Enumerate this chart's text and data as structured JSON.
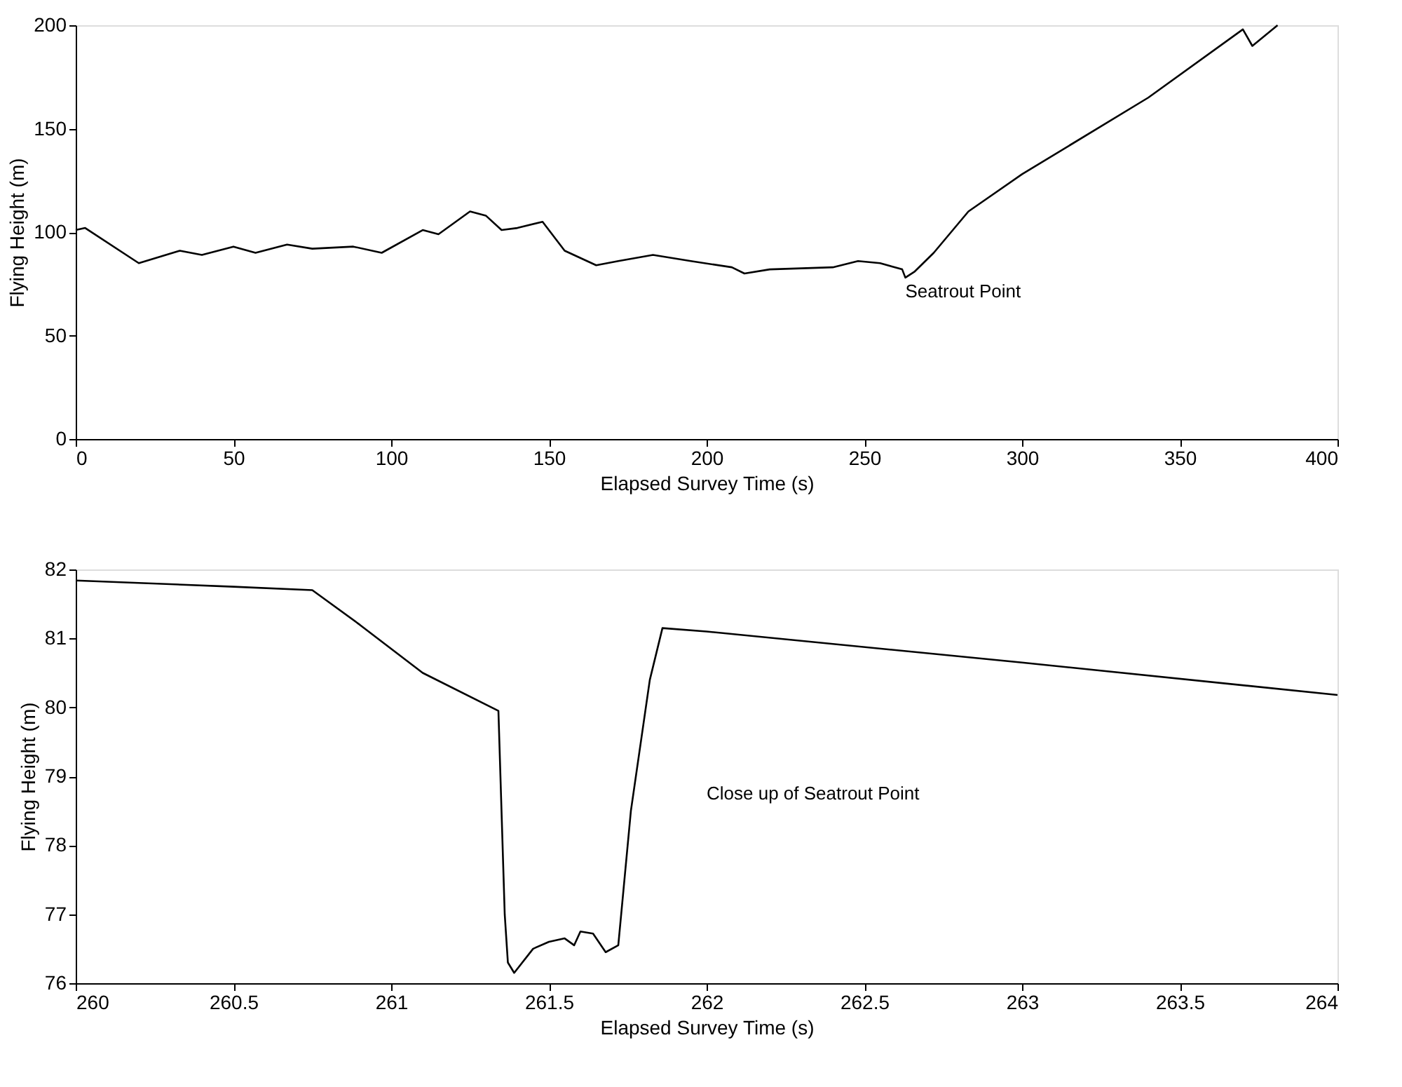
{
  "chart_data": [
    {
      "type": "line",
      "xlabel": "Elapsed Survey Time (s)",
      "ylabel": "Flying Height (m)",
      "xlim": [
        0,
        400
      ],
      "xticks": [
        0,
        50,
        100,
        150,
        200,
        250,
        300,
        350,
        400
      ],
      "ylim": [
        0,
        200
      ],
      "yticks": [
        0,
        50,
        100,
        150,
        200
      ],
      "grid": false,
      "x": [
        0,
        3,
        20,
        33,
        40,
        50,
        57,
        67,
        75,
        88,
        97,
        110,
        115,
        125,
        130,
        135,
        140,
        148,
        155,
        165,
        172,
        183,
        195,
        208,
        212,
        220,
        240,
        248,
        255,
        262,
        263,
        266,
        272,
        283,
        300,
        340,
        370,
        373,
        381
      ],
      "series": [
        {
          "color": "#000000",
          "values": [
            101,
            102,
            85,
            91,
            89,
            93,
            90,
            94,
            92,
            93,
            90,
            101,
            99,
            110,
            108,
            101,
            102,
            105,
            91,
            84,
            86,
            89,
            86,
            83,
            80,
            82,
            83,
            86,
            85,
            82,
            78,
            81,
            90,
            110,
            128,
            165,
            198,
            190,
            200
          ]
        }
      ],
      "annotations": [
        {
          "text": "Seatrout Point",
          "x": 263,
          "y": 78
        }
      ]
    },
    {
      "type": "line",
      "xlabel": "Elapsed Survey Time (s)",
      "ylabel": "Flying Height (m)",
      "xlim": [
        260,
        264
      ],
      "xticks": [
        260,
        260.5,
        261,
        261.5,
        262,
        262.5,
        263,
        263.5,
        264
      ],
      "ylim": [
        76,
        82
      ],
      "yticks": [
        76,
        77,
        78,
        79,
        80,
        81,
        82
      ],
      "grid": false,
      "x": [
        260,
        260.5,
        260.75,
        260.9,
        261.1,
        261.34,
        261.36,
        261.37,
        261.39,
        261.45,
        261.5,
        261.55,
        261.58,
        261.6,
        261.64,
        261.68,
        261.72,
        261.76,
        261.82,
        261.86,
        262,
        263,
        264
      ],
      "series": [
        {
          "color": "#000000",
          "values": [
            81.84,
            81.75,
            81.7,
            81.2,
            80.5,
            79.95,
            77.0,
            76.3,
            76.15,
            76.5,
            76.6,
            76.65,
            76.55,
            76.75,
            76.72,
            76.45,
            76.55,
            78.5,
            80.4,
            81.15,
            81.1,
            80.65,
            80.18
          ]
        }
      ],
      "annotations": [
        "Close up of Seatrout Point"
      ]
    }
  ]
}
